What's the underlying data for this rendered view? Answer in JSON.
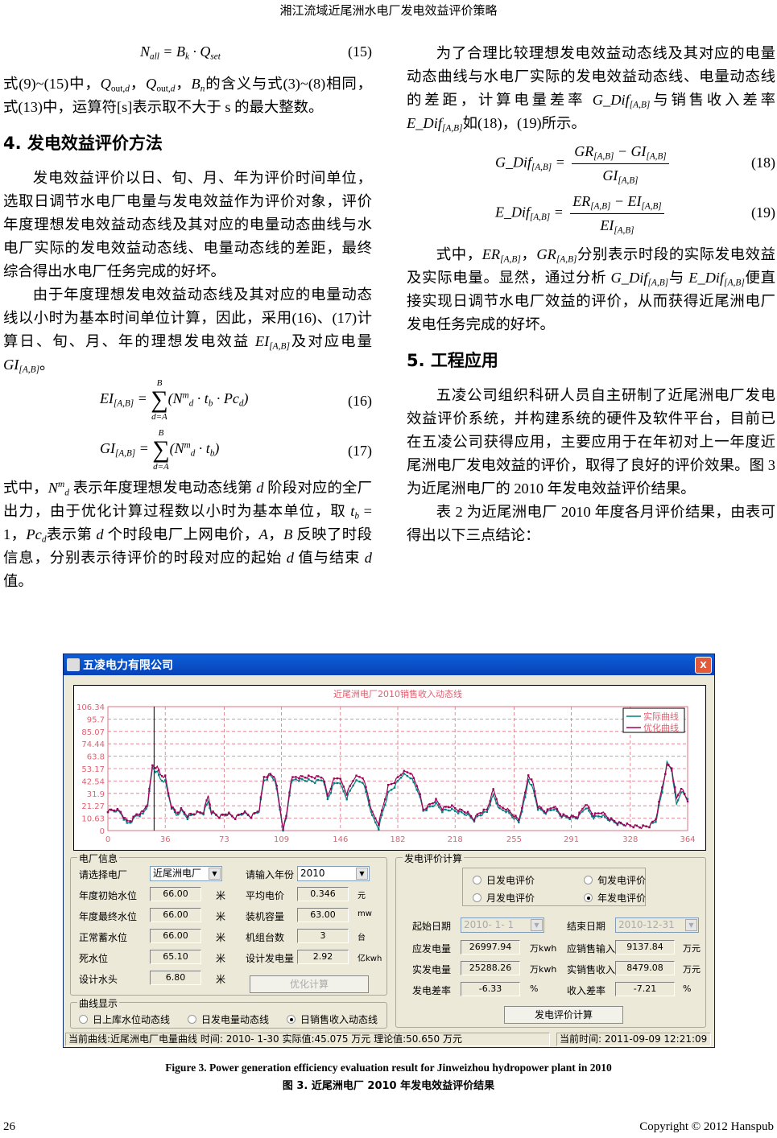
{
  "header": "湘江流域近尾洲水电厂发电效益评价策略",
  "left": {
    "eq15_num": "(15)",
    "p1": [
      [
        "式(9)~(15)中，",
        ""
      ],
      [
        "Q",
        "i"
      ],
      [
        "out,",
        "sub"
      ],
      [
        "d",
        "subi"
      ],
      [
        "，",
        ""
      ],
      [
        "Q",
        "i"
      ],
      [
        "out,",
        "sub"
      ],
      [
        "d",
        "subi"
      ],
      [
        "，",
        ""
      ],
      [
        "B",
        "i"
      ],
      [
        "n",
        "subi"
      ],
      [
        "的含义与式(3)~(8)相同，式(13)中，运算符[s]表示取不大于 s 的最大整数。",
        ""
      ]
    ],
    "h4": "4.  发电效益评价方法",
    "p2": [
      [
        "发电效益评价以日、旬、月、年为评价时间单位，选取日调节水电厂电量与发电效益作为评价对象，评价年度理想发电效益动态线及其对应的电量动态曲线与水电厂实际的发电效益动态线、电量动态线的差距，最终综合得出水电厂任务完成的好坏。",
        ""
      ]
    ],
    "p3": [
      [
        "由于年度理想发电效益动态线及其对应的电量动态线以小时为基本时间单位计算，因此，采用(16)、(17)计算日、旬、月、年的理想发电效益 ",
        ""
      ],
      [
        "EI",
        "i"
      ],
      [
        "[A,B]",
        "subi"
      ],
      [
        "及对应电量 ",
        ""
      ],
      [
        "GI",
        "i"
      ],
      [
        "[A,B]",
        "subi"
      ],
      [
        "。",
        ""
      ]
    ],
    "eq16_num": "(16)",
    "eq17_num": "(17)",
    "p4": [
      [
        "式中，",
        ""
      ],
      [
        "N",
        "i"
      ],
      [
        "m",
        "supi"
      ],
      [
        "d",
        "subi"
      ],
      [
        " 表示年度理想发电动态线第 ",
        ""
      ],
      [
        "d",
        "i"
      ],
      [
        " 阶段对应的全厂出力，由于优化计算过程数以小时为基本单位，取 ",
        ""
      ],
      [
        "t",
        "i"
      ],
      [
        "b",
        "subi"
      ],
      [
        " = 1，",
        ""
      ],
      [
        "Pc",
        "i"
      ],
      [
        "d",
        "subi"
      ],
      [
        "表示第 ",
        ""
      ],
      [
        "d",
        "i"
      ],
      [
        " 个时段电厂上网电价，",
        ""
      ],
      [
        "A",
        "i"
      ],
      [
        "，",
        ""
      ],
      [
        "B",
        "i"
      ],
      [
        " 反映了时段信息，分别表示待评价的时段对应的起始 ",
        ""
      ],
      [
        "d",
        "i"
      ],
      [
        " 值与结束 ",
        ""
      ],
      [
        "d",
        "i"
      ],
      [
        " 值。",
        ""
      ]
    ]
  },
  "right": {
    "p1": [
      [
        "为了合理比较理想发电效益动态线及其对应的电量动态曲线与水电厂实际的发电效益动态线、电量动态线的差距，计算电量差率 ",
        ""
      ],
      [
        "G_Dif",
        "i"
      ],
      [
        "[A,B]",
        "subi"
      ],
      [
        "与销售收入差率 ",
        ""
      ],
      [
        "E_Dif",
        "i"
      ],
      [
        "[A,B]",
        "subi"
      ],
      [
        "如(18)，(19)所示。",
        ""
      ]
    ],
    "eq18_num": "(18)",
    "eq19_num": "(19)",
    "p2": [
      [
        "式中，",
        ""
      ],
      [
        "ER",
        "i"
      ],
      [
        "[A,B]",
        "subi"
      ],
      [
        "，",
        ""
      ],
      [
        "GR",
        "i"
      ],
      [
        "[A,B]",
        "subi"
      ],
      [
        "分别表示时段的实际发电效益及实际电量。显然，通过分析 ",
        ""
      ],
      [
        "G_Dif",
        "i"
      ],
      [
        "[A,B]",
        "subi"
      ],
      [
        "与 ",
        ""
      ],
      [
        "E_Dif",
        "i"
      ],
      [
        "[A,B]",
        "subi"
      ],
      [
        "便直接实现日调节水电厂效益的评价，从而获得近尾洲电厂发电任务完成的好坏。",
        ""
      ]
    ],
    "h5": "5.  工程应用",
    "p3": [
      [
        "五凌公司组织科研人员自主研制了近尾洲电厂发电效益评价系统，并构建系统的硬件及软件平台，目前已在五凌公司获得应用，主要应用于在年初对上一年度近尾洲电厂发电效益的评价，取得了良好的评价效果。图 3 为近尾洲电厂的 2010 年发电效益评价结果。",
        ""
      ]
    ],
    "p4": [
      [
        "表 2 为近尾洲电厂 2010 年度各月评价结果，由表可得出以下三点结论：",
        ""
      ]
    ]
  },
  "figure": {
    "window_title": "五凌电力有限公司",
    "close": "X",
    "plant_group": "电厂信息",
    "labels": {
      "plant": "请选择电厂",
      "year": "请输入年份",
      "init_level": "年度初始水位",
      "avg_price": "平均电价",
      "final_level": "年度最终水位",
      "capacity": "装机容量",
      "normal_level": "正常蓄水位",
      "units": "机组台数",
      "dead_level": "死水位",
      "design_gen": "设计发电量",
      "design_head": "设计水头"
    },
    "values": {
      "plant": "近尾洲电厂",
      "year": "2010",
      "init_level": "66.00",
      "avg_price": "0.346",
      "final_level": "66.00",
      "capacity": "63.00",
      "normal_level": "66.00",
      "units": "3",
      "dead_level": "65.10",
      "design_gen": "2.92",
      "design_head": "6.80"
    },
    "unit_labels": {
      "m": "米",
      "yuan": "元",
      "mw": "mw",
      "tai": "台",
      "ykwh": "亿kwh"
    },
    "optimize_button": "优化计算",
    "curve_group": "曲线显示",
    "curve_options": [
      {
        "label": "日上库水位动态线",
        "selected": false
      },
      {
        "label": "日发电量动态线",
        "selected": false
      },
      {
        "label": "日销售收入动态线",
        "selected": true
      }
    ],
    "eval_group": "发电评价计算",
    "eval_options": [
      {
        "label": "日发电评价",
        "selected": false
      },
      {
        "label": "旬发电评价",
        "selected": false
      },
      {
        "label": "月发电评价",
        "selected": false
      },
      {
        "label": "年发电评价",
        "selected": true
      }
    ],
    "start_label": "起始日期",
    "start_value": "2010- 1- 1",
    "end_label": "结束日期",
    "end_value": "2010-12-31",
    "results": [
      {
        "label": "应发电量",
        "value": "26997.94",
        "unit": "万kwh",
        "label2": "应销售输入",
        "value2": "9137.84",
        "unit2": "万元"
      },
      {
        "label": "实发电量",
        "value": "25288.26",
        "unit": "万kwh",
        "label2": "实销售收入",
        "value2": "8479.08",
        "unit2": "万元"
      },
      {
        "label": "发电差率",
        "value": "-6.33",
        "unit": "%",
        "label2": "收入差率",
        "value2": "-7.21",
        "unit2": "%"
      }
    ],
    "calc_button": "发电评价计算",
    "status_left": "当前曲线:近尾洲电厂电量曲线 时间: 2010- 1-30 实际值:45.075 万元 理论值:50.650 万元",
    "status_right": "当前时间: 2011-09-09 12:21:09"
  },
  "chart_data": {
    "type": "line",
    "title": "近尾洲电厂2010销售收入动态线",
    "xlim": [
      0,
      364
    ],
    "ylim": [
      0,
      106.34
    ],
    "xticks": [
      "0",
      "36",
      "73",
      "109",
      "146",
      "182",
      "218",
      "255",
      "291",
      "328",
      "364"
    ],
    "yticks": [
      "0",
      "10.63",
      "21.27",
      "31.9",
      "42.54",
      "53.17",
      "63.8",
      "74.44",
      "85.07",
      "95.7",
      "106.34"
    ],
    "grid": true,
    "legend": "top-right",
    "cursor_x": 29,
    "series": [
      {
        "name": "实际曲线",
        "color": "#008080",
        "points": [
          [
            0,
            17
          ],
          [
            5,
            17
          ],
          [
            8,
            15
          ],
          [
            12,
            6
          ],
          [
            15,
            8
          ],
          [
            18,
            13
          ],
          [
            22,
            14
          ],
          [
            25,
            22
          ],
          [
            28,
            54
          ],
          [
            31,
            50
          ],
          [
            33,
            44
          ],
          [
            36,
            42
          ],
          [
            38,
            30
          ],
          [
            40,
            20
          ],
          [
            43,
            13
          ],
          [
            46,
            17
          ],
          [
            50,
            11
          ],
          [
            55,
            15
          ],
          [
            60,
            15
          ],
          [
            63,
            25
          ],
          [
            65,
            15
          ],
          [
            70,
            12
          ],
          [
            75,
            14
          ],
          [
            80,
            11
          ],
          [
            85,
            15
          ],
          [
            90,
            12
          ],
          [
            95,
            17
          ],
          [
            98,
            43
          ],
          [
            102,
            47
          ],
          [
            105,
            43
          ],
          [
            108,
            18
          ],
          [
            110,
            1
          ],
          [
            112,
            10
          ],
          [
            115,
            41
          ],
          [
            118,
            44
          ],
          [
            125,
            43
          ],
          [
            130,
            42
          ],
          [
            135,
            44
          ],
          [
            138,
            27
          ],
          [
            142,
            40
          ],
          [
            145,
            42
          ],
          [
            150,
            28
          ],
          [
            155,
            42
          ],
          [
            160,
            42
          ],
          [
            163,
            28
          ],
          [
            166,
            12
          ],
          [
            170,
            2
          ],
          [
            173,
            18
          ],
          [
            176,
            32
          ],
          [
            180,
            38
          ],
          [
            185,
            48
          ],
          [
            190,
            46
          ],
          [
            195,
            33
          ],
          [
            198,
            17
          ],
          [
            202,
            20
          ],
          [
            206,
            23
          ],
          [
            210,
            17
          ],
          [
            215,
            18
          ],
          [
            220,
            16
          ],
          [
            225,
            14
          ],
          [
            230,
            9
          ],
          [
            233,
            13
          ],
          [
            238,
            16
          ],
          [
            242,
            30
          ],
          [
            246,
            18
          ],
          [
            250,
            17
          ],
          [
            254,
            12
          ],
          [
            258,
            7
          ],
          [
            262,
            28
          ],
          [
            264,
            44
          ],
          [
            267,
            35
          ],
          [
            270,
            19
          ],
          [
            275,
            15
          ],
          [
            280,
            19
          ],
          [
            285,
            12
          ],
          [
            290,
            11
          ],
          [
            295,
            11
          ],
          [
            300,
            20
          ],
          [
            305,
            11
          ],
          [
            310,
            13
          ],
          [
            315,
            9
          ],
          [
            320,
            6
          ],
          [
            325,
            5
          ],
          [
            330,
            4
          ],
          [
            335,
            3
          ],
          [
            340,
            4
          ],
          [
            344,
            8
          ],
          [
            348,
            33
          ],
          [
            351,
            58
          ],
          [
            354,
            52
          ],
          [
            357,
            22
          ],
          [
            360,
            34
          ],
          [
            364,
            27
          ]
        ]
      },
      {
        "name": "优化曲线",
        "color": "#a0005a",
        "points": [
          [
            0,
            17
          ],
          [
            5,
            18
          ],
          [
            8,
            16
          ],
          [
            12,
            8
          ],
          [
            15,
            9
          ],
          [
            18,
            14
          ],
          [
            22,
            16
          ],
          [
            25,
            24
          ],
          [
            28,
            56
          ],
          [
            31,
            54
          ],
          [
            33,
            48
          ],
          [
            36,
            46
          ],
          [
            38,
            32
          ],
          [
            40,
            21
          ],
          [
            43,
            15
          ],
          [
            46,
            18
          ],
          [
            50,
            13
          ],
          [
            55,
            15
          ],
          [
            60,
            16
          ],
          [
            63,
            30
          ],
          [
            65,
            16
          ],
          [
            70,
            12
          ],
          [
            75,
            15
          ],
          [
            80,
            11
          ],
          [
            85,
            16
          ],
          [
            90,
            12
          ],
          [
            95,
            18
          ],
          [
            98,
            46
          ],
          [
            102,
            48
          ],
          [
            105,
            46
          ],
          [
            108,
            20
          ],
          [
            110,
            2
          ],
          [
            112,
            12
          ],
          [
            115,
            44
          ],
          [
            118,
            46
          ],
          [
            125,
            46
          ],
          [
            130,
            46
          ],
          [
            135,
            46
          ],
          [
            138,
            30
          ],
          [
            142,
            44
          ],
          [
            145,
            46
          ],
          [
            150,
            32
          ],
          [
            155,
            46
          ],
          [
            160,
            46
          ],
          [
            163,
            32
          ],
          [
            166,
            15
          ],
          [
            170,
            6
          ],
          [
            173,
            22
          ],
          [
            176,
            38
          ],
          [
            180,
            42
          ],
          [
            185,
            50
          ],
          [
            190,
            50
          ],
          [
            195,
            36
          ],
          [
            198,
            18
          ],
          [
            202,
            22
          ],
          [
            206,
            26
          ],
          [
            210,
            19
          ],
          [
            215,
            21
          ],
          [
            220,
            18
          ],
          [
            225,
            16
          ],
          [
            230,
            10
          ],
          [
            233,
            15
          ],
          [
            238,
            18
          ],
          [
            242,
            35
          ],
          [
            246,
            20
          ],
          [
            250,
            19
          ],
          [
            254,
            14
          ],
          [
            258,
            9
          ],
          [
            262,
            32
          ],
          [
            264,
            48
          ],
          [
            267,
            40
          ],
          [
            270,
            21
          ],
          [
            275,
            16
          ],
          [
            280,
            21
          ],
          [
            285,
            13
          ],
          [
            290,
            12
          ],
          [
            295,
            12
          ],
          [
            300,
            23
          ],
          [
            305,
            13
          ],
          [
            310,
            16
          ],
          [
            315,
            10
          ],
          [
            320,
            7
          ],
          [
            325,
            5
          ],
          [
            330,
            4
          ],
          [
            335,
            3
          ],
          [
            340,
            4
          ],
          [
            344,
            10
          ],
          [
            348,
            37
          ],
          [
            351,
            56
          ],
          [
            354,
            54
          ],
          [
            357,
            27
          ],
          [
            360,
            37
          ],
          [
            364,
            25
          ]
        ]
      }
    ]
  },
  "captions": {
    "en": "Figure 3. Power generation efficiency evaluation result for Jinweizhou hydropower plant in 2010",
    "zh": "图 3.  近尾洲电厂 2010 年发电效益评价结果"
  },
  "footer": {
    "page": "26",
    "copyright": "Copyright © 2012 Hanspub"
  }
}
